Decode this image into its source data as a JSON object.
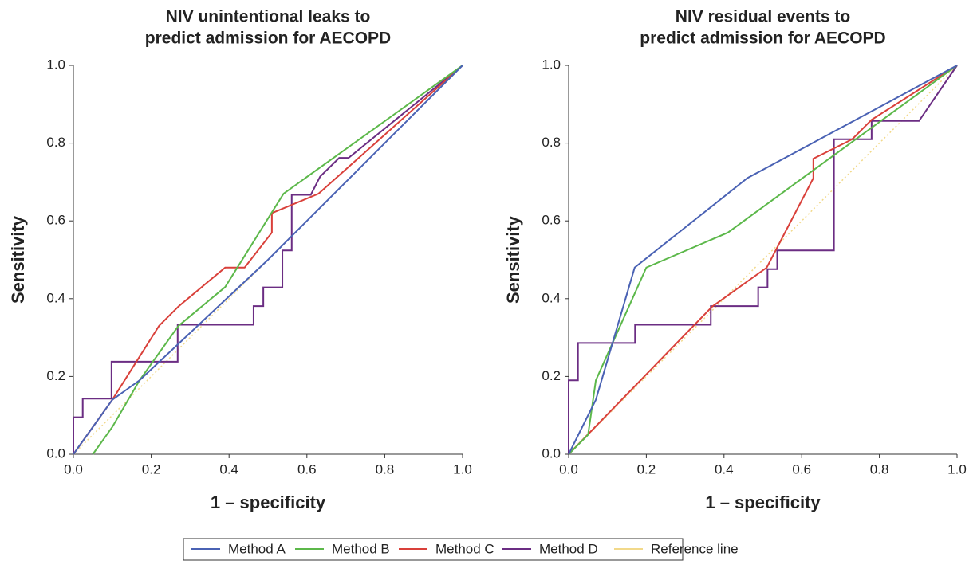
{
  "chart_data": [
    {
      "type": "line",
      "title": [
        "NIV unintentional leaks to",
        "predict admission for AECOPD"
      ],
      "x_label": "1 – specificity",
      "y_label": "Sensitivity",
      "xlim": [
        0,
        1
      ],
      "ylim": [
        0,
        1
      ],
      "xticks": [
        {
          "value": 0,
          "label": "0.0"
        },
        0.2,
        0.4,
        0.6,
        0.8,
        {
          "value": 1,
          "label": "1.0"
        }
      ],
      "yticks": [
        {
          "value": 0,
          "label": "0.0"
        },
        0.2,
        0.4,
        0.6,
        0.8,
        {
          "value": 1,
          "label": "1.0"
        }
      ],
      "series": [
        {
          "name": "Method A",
          "color": "#4a62b4",
          "x": [
            0,
            0.1,
            0.17,
            0.5,
            1
          ],
          "values": [
            0,
            0.14,
            0.19,
            0.5,
            1
          ]
        },
        {
          "name": "Method B",
          "color": "#5cb84a",
          "x": [
            0.05,
            0.1,
            0.17,
            0.27,
            0.39,
            0.54,
            1
          ],
          "values": [
            0,
            0.07,
            0.19,
            0.33,
            0.43,
            0.67,
            1
          ]
        },
        {
          "name": "Method C",
          "color": "#d9403a",
          "x": [
            0,
            0.1,
            0.22,
            0.27,
            0.39,
            0.44,
            0.51,
            0.51,
            0.63,
            1
          ],
          "values": [
            0,
            0.14,
            0.33,
            0.38,
            0.48,
            0.48,
            0.57,
            0.62,
            0.67,
            1
          ]
        },
        {
          "name": "Method D",
          "color": "#6b2d83",
          "x": [
            0,
            0,
            0.024,
            0.024,
            0.098,
            0.098,
            0.268,
            0.268,
            0.463,
            0.463,
            0.488,
            0.488,
            0.537,
            0.537,
            0.561,
            0.561,
            0.61,
            0.634,
            0.683,
            0.707,
            1
          ],
          "values": [
            0,
            0.095,
            0.095,
            0.143,
            0.143,
            0.238,
            0.238,
            0.333,
            0.333,
            0.381,
            0.381,
            0.429,
            0.429,
            0.524,
            0.524,
            0.667,
            0.667,
            0.714,
            0.762,
            0.762,
            1
          ]
        },
        {
          "name": "Reference line",
          "color": "#f2d98a",
          "dash": true,
          "x": [
            0,
            1
          ],
          "values": [
            0,
            1
          ]
        }
      ]
    },
    {
      "type": "line",
      "title": [
        "NIV residual events to",
        "predict admission for AECOPD"
      ],
      "x_label": "1 – specificity",
      "y_label": "Sensitivity",
      "xlim": [
        0,
        1
      ],
      "ylim": [
        0,
        1
      ],
      "xticks": [
        {
          "value": 0,
          "label": "0.0"
        },
        0.2,
        0.4,
        0.6,
        0.8,
        {
          "value": 1,
          "label": "1.0"
        }
      ],
      "yticks": [
        {
          "value": 0,
          "label": "0.0"
        },
        0.2,
        0.4,
        0.6,
        0.8,
        {
          "value": 1,
          "label": "1.0"
        }
      ],
      "series": [
        {
          "name": "Method A",
          "color": "#4a62b4",
          "x": [
            0,
            0.07,
            0.17,
            0.46,
            1
          ],
          "values": [
            0,
            0.14,
            0.48,
            0.71,
            1
          ]
        },
        {
          "name": "Method B",
          "color": "#5cb84a",
          "x": [
            0,
            0.05,
            0.07,
            0.2,
            0.41,
            1
          ],
          "values": [
            0,
            0.05,
            0.19,
            0.48,
            0.57,
            1
          ]
        },
        {
          "name": "Method C",
          "color": "#d9403a",
          "x": [
            0,
            0.37,
            0.51,
            0.63,
            0.63,
            0.73,
            0.78,
            1
          ],
          "values": [
            0,
            0.38,
            0.48,
            0.71,
            0.76,
            0.81,
            0.86,
            1
          ]
        },
        {
          "name": "Method D",
          "color": "#6b2d83",
          "x": [
            0,
            0,
            0.024,
            0.024,
            0.171,
            0.171,
            0.366,
            0.366,
            0.488,
            0.488,
            0.512,
            0.512,
            0.537,
            0.537,
            0.683,
            0.683,
            0.78,
            0.78,
            0.902,
            1
          ],
          "values": [
            0,
            0.19,
            0.19,
            0.286,
            0.286,
            0.333,
            0.333,
            0.381,
            0.381,
            0.429,
            0.429,
            0.476,
            0.476,
            0.524,
            0.524,
            0.81,
            0.81,
            0.857,
            0.857,
            1
          ]
        },
        {
          "name": "Reference line",
          "color": "#f2d98a",
          "dash": true,
          "x": [
            0,
            1
          ],
          "values": [
            0,
            1
          ]
        }
      ]
    }
  ]
}
